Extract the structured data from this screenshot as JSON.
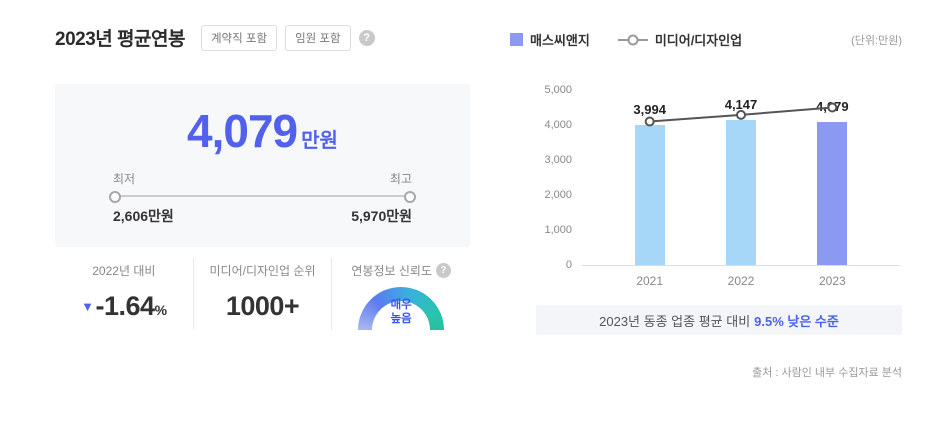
{
  "header": {
    "title": "2023년 평균연봉",
    "badges": [
      "계약직 포함",
      "임원 포함"
    ],
    "help_icon": "?"
  },
  "salary_card": {
    "amount": "4,079",
    "unit": "만원",
    "min_label": "최저",
    "max_label": "최고",
    "min_value": "2,606만원",
    "max_value": "5,970만원"
  },
  "stats": {
    "yoy": {
      "label": "2022년 대비",
      "arrow": "▼",
      "value": "-1.64",
      "suffix": "%"
    },
    "rank": {
      "label": "미디어/디자인업 순위",
      "value": "1000+"
    },
    "trust": {
      "label": "연봉정보 신뢰도",
      "help_icon": "?",
      "gauge_line1": "매우",
      "gauge_line2": "높음"
    }
  },
  "legend": {
    "company": "매스씨앤지",
    "industry": "미디어/디자인업",
    "unit_note": "(단위:만원)"
  },
  "chart_data": {
    "type": "bar",
    "categories": [
      "2021",
      "2022",
      "2023"
    ],
    "series": [
      {
        "name": "매스씨앤지",
        "type": "bar",
        "values": [
          3994,
          4147,
          4079
        ],
        "colors": [
          "#a7d7f8",
          "#a7d7f8",
          "#8b99f2"
        ]
      },
      {
        "name": "미디어/디자인업",
        "type": "line",
        "values": [
          4100,
          4290,
          4500
        ],
        "color": "#555555",
        "marker": "circle"
      }
    ],
    "ylim": [
      0,
      5000
    ],
    "yticks": [
      0,
      1000,
      2000,
      3000,
      4000,
      5000
    ],
    "unit": "만원",
    "legend_position": "top",
    "grid": false
  },
  "summary": {
    "prefix": "2023년 동종 업종 평균 대비",
    "highlight": "9.5% 낮은 수준"
  },
  "source": "출처 : 사람인 내부 수집자료 분석",
  "colors": {
    "accent_blue": "#5161ee",
    "bar_light": "#a7d7f8",
    "bar_accent": "#8b99f2",
    "highlight_blue": "#4a63ee",
    "gauge_teal": "#25c29d",
    "card_bg": "#f7f8f9",
    "summary_bg": "#f4f5f8"
  }
}
